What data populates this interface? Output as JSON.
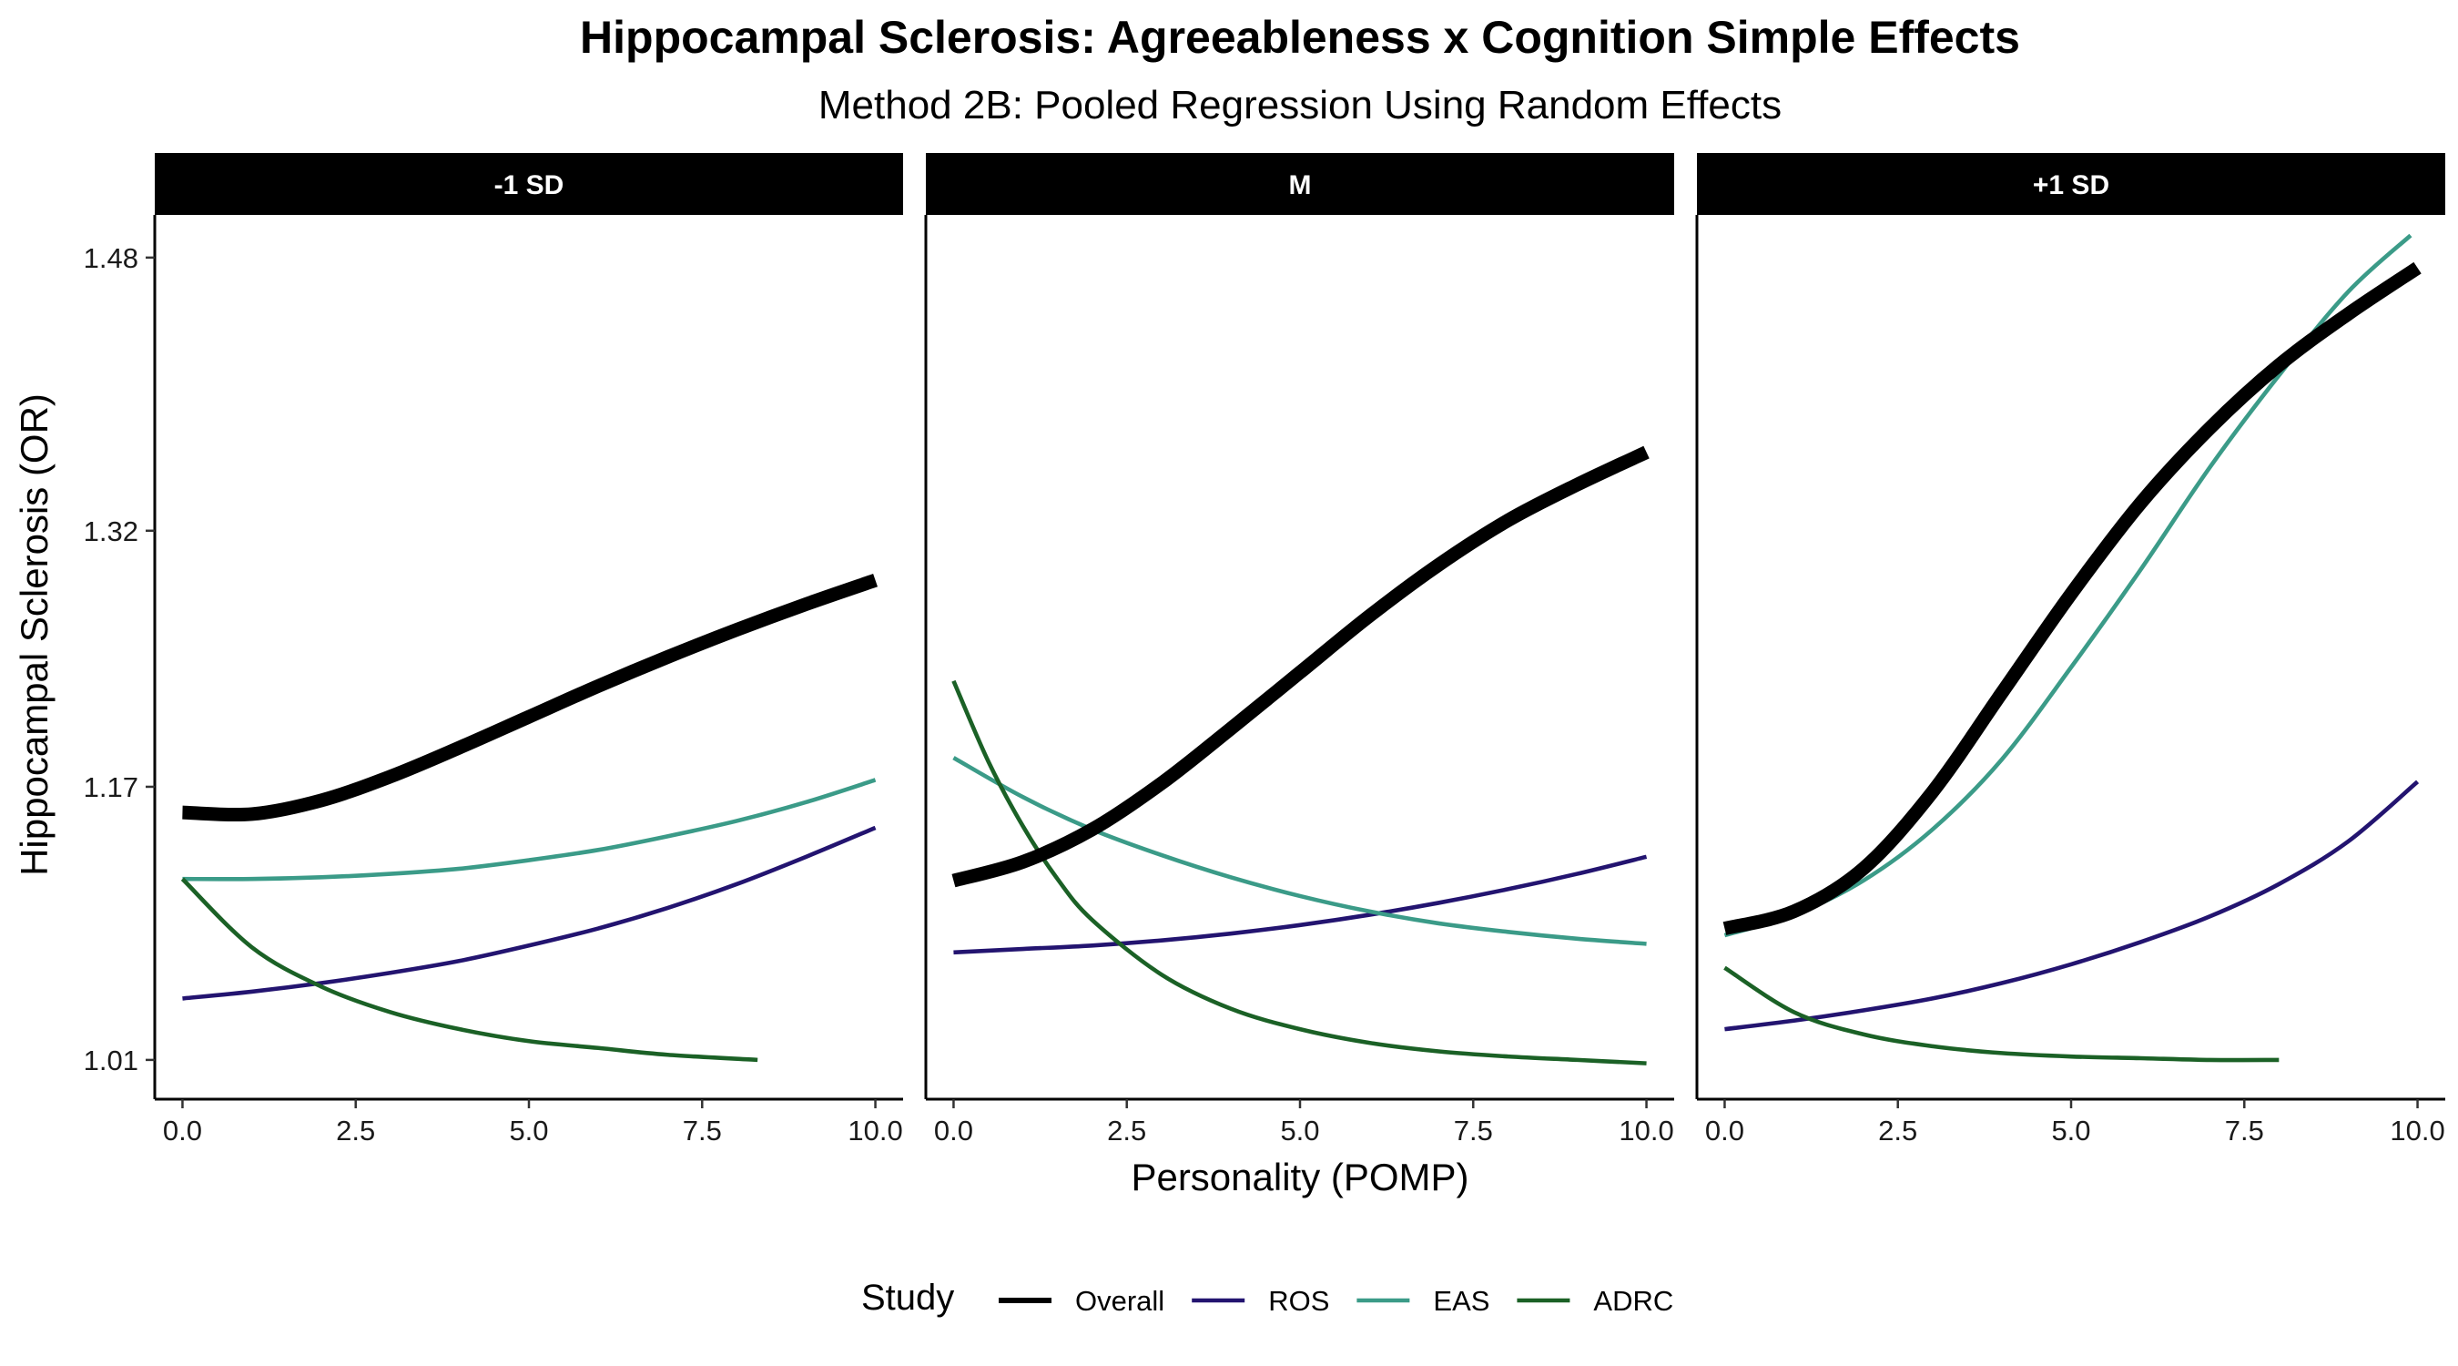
{
  "chart_data": {
    "type": "line",
    "title": "Hippocampal Sclerosis: Agreeableness x Cognition Simple Effects",
    "subtitle": "Method 2B: Pooled Regression Using Random Effects",
    "xlabel": "Personality (POMP)",
    "ylabel": "Hippocampal Sclerosis (OR)",
    "xlim": [
      -0.4,
      10.4
    ],
    "ylim": [
      0.987,
      1.505
    ],
    "x_ticks": [
      0,
      2.5,
      5,
      7.5,
      10
    ],
    "x_tick_labels": [
      "0.0",
      "2.5",
      "5.0",
      "7.5",
      "10.0"
    ],
    "y_ticks": [
      1.01,
      1.17,
      1.32,
      1.48
    ],
    "y_tick_labels": [
      "1.01",
      "1.17",
      "1.32",
      "1.48"
    ],
    "grid": false,
    "legend": {
      "title": "Study",
      "position": "bottom",
      "entries": [
        "Overall",
        "ROS",
        "EAS",
        "ADRC"
      ]
    },
    "colors": {
      "Overall": "#000000",
      "ROS": "#231470",
      "EAS": "#3b9b88",
      "ADRC": "#1b6126"
    },
    "panels": [
      {
        "label": "-1 SD",
        "series": [
          {
            "name": "Overall",
            "x": [
              0,
              1,
              2,
              3,
              4,
              5,
              6,
              7,
              8,
              9,
              10
            ],
            "y": [
              1.155,
              1.154,
              1.162,
              1.176,
              1.193,
              1.211,
              1.229,
              1.246,
              1.262,
              1.277,
              1.291
            ]
          },
          {
            "name": "ROS",
            "x": [
              0,
              1,
              2,
              3,
              4,
              5,
              6,
              7,
              8,
              9,
              10
            ],
            "y": [
              1.046,
              1.05,
              1.055,
              1.061,
              1.068,
              1.077,
              1.087,
              1.099,
              1.113,
              1.129,
              1.146
            ]
          },
          {
            "name": "EAS",
            "x": [
              0,
              1,
              2,
              3,
              4,
              5,
              6,
              7,
              8,
              9,
              10
            ],
            "y": [
              1.116,
              1.116,
              1.117,
              1.119,
              1.122,
              1.127,
              1.133,
              1.141,
              1.15,
              1.161,
              1.174
            ]
          },
          {
            "name": "ADRC",
            "x": [
              0,
              1,
              2,
              3,
              4,
              5,
              6,
              7,
              8.3
            ],
            "y": [
              1.116,
              1.076,
              1.053,
              1.038,
              1.028,
              1.021,
              1.017,
              1.013,
              1.01
            ]
          }
        ]
      },
      {
        "label": "M",
        "series": [
          {
            "name": "Overall",
            "x": [
              0,
              1,
              2,
              3,
              4,
              5,
              6,
              7,
              8,
              9,
              10
            ],
            "y": [
              1.115,
              1.126,
              1.145,
              1.172,
              1.204,
              1.237,
              1.27,
              1.3,
              1.326,
              1.347,
              1.366
            ]
          },
          {
            "name": "ROS",
            "x": [
              0,
              1,
              2,
              3,
              4,
              5,
              6,
              7,
              8,
              9,
              10
            ],
            "y": [
              1.073,
              1.075,
              1.077,
              1.08,
              1.084,
              1.089,
              1.095,
              1.102,
              1.11,
              1.119,
              1.129
            ]
          },
          {
            "name": "EAS",
            "x": [
              0,
              1,
              2,
              3,
              4,
              5,
              6,
              7,
              8,
              9,
              10
            ],
            "y": [
              1.187,
              1.164,
              1.145,
              1.13,
              1.117,
              1.106,
              1.097,
              1.09,
              1.085,
              1.081,
              1.078
            ]
          },
          {
            "name": "ADRC",
            "x": [
              0,
              0.5,
              1,
              1.5,
              2,
              3,
              4,
              5,
              6,
              7,
              8,
              9,
              10
            ],
            "y": [
              1.232,
              1.185,
              1.147,
              1.116,
              1.092,
              1.06,
              1.04,
              1.028,
              1.02,
              1.015,
              1.012,
              1.01,
              1.008
            ]
          }
        ]
      },
      {
        "label": "+1 SD",
        "series": [
          {
            "name": "Overall",
            "x": [
              0,
              1,
              2,
              3,
              4,
              5,
              6,
              7,
              8,
              9,
              10
            ],
            "y": [
              1.087,
              1.097,
              1.122,
              1.167,
              1.225,
              1.283,
              1.336,
              1.38,
              1.417,
              1.447,
              1.474
            ]
          },
          {
            "name": "ROS",
            "x": [
              0,
              1,
              2,
              3,
              4,
              5,
              6,
              7,
              8,
              9,
              10
            ],
            "y": [
              1.028,
              1.033,
              1.039,
              1.046,
              1.055,
              1.066,
              1.079,
              1.094,
              1.113,
              1.138,
              1.173
            ]
          },
          {
            "name": "EAS",
            "x": [
              0,
              1,
              2,
              3,
              4,
              5,
              6,
              7,
              8,
              9,
              9.9
            ],
            "y": [
              1.083,
              1.095,
              1.115,
              1.145,
              1.186,
              1.24,
              1.297,
              1.357,
              1.411,
              1.46,
              1.493
            ]
          },
          {
            "name": "ADRC",
            "x": [
              0,
              1,
              2,
              3,
              4,
              5,
              6,
              7,
              8
            ],
            "y": [
              1.064,
              1.038,
              1.025,
              1.018,
              1.014,
              1.012,
              1.011,
              1.01,
              1.01
            ]
          }
        ]
      }
    ]
  }
}
